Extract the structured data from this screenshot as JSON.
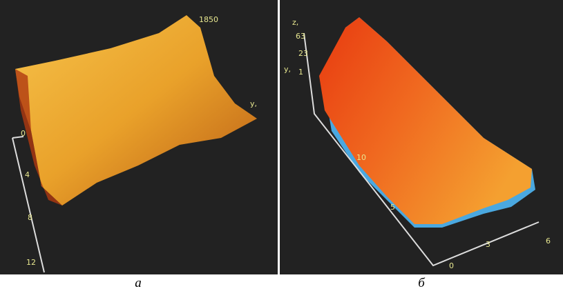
{
  "panels": [
    {
      "caption": "а",
      "labels": {
        "peak": "1850",
        "y_axis": "y,",
        "ticks": [
          "0",
          "4",
          "8",
          "12"
        ]
      }
    },
    {
      "caption": "б",
      "labels": {
        "z_axis": "z,",
        "z_ticks": [
          "63",
          "23"
        ],
        "y_axis": "y,",
        "y_tick": "1",
        "left_ticks": [
          "10",
          "5"
        ],
        "bottom_ticks": [
          "0",
          "3",
          "6"
        ]
      }
    }
  ]
}
